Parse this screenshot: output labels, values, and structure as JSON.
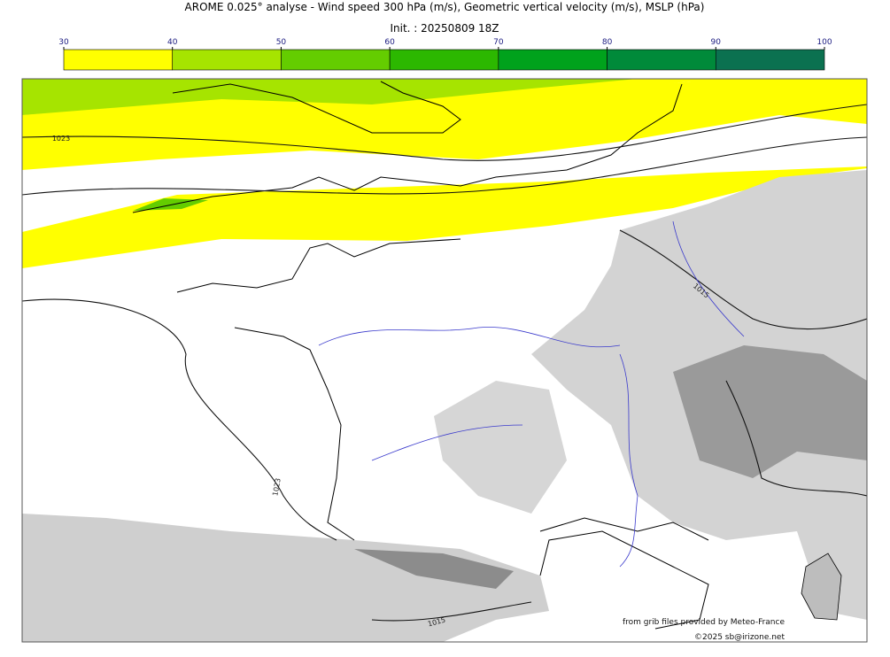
{
  "header": {
    "title": "AROME 0.025° analyse - Wind speed 300 hPa (m/s), Geometric vertical velocity (m/s), MSLP (hPa)",
    "init": "Init. : 20250809 18Z"
  },
  "colorbar": {
    "ticks": [
      30,
      40,
      50,
      60,
      70,
      80,
      90,
      100
    ],
    "colors": [
      "#ffff00",
      "#a6e400",
      "#64cd00",
      "#2cb800",
      "#00a21c",
      "#008a3a",
      "#0b7150"
    ]
  },
  "contour_labels": [
    "1023",
    "1023",
    "1015",
    "1015"
  ],
  "credits": {
    "source": "from grib files provided by Meteo-France",
    "copyright": "©2025 sb@irizone.net"
  }
}
